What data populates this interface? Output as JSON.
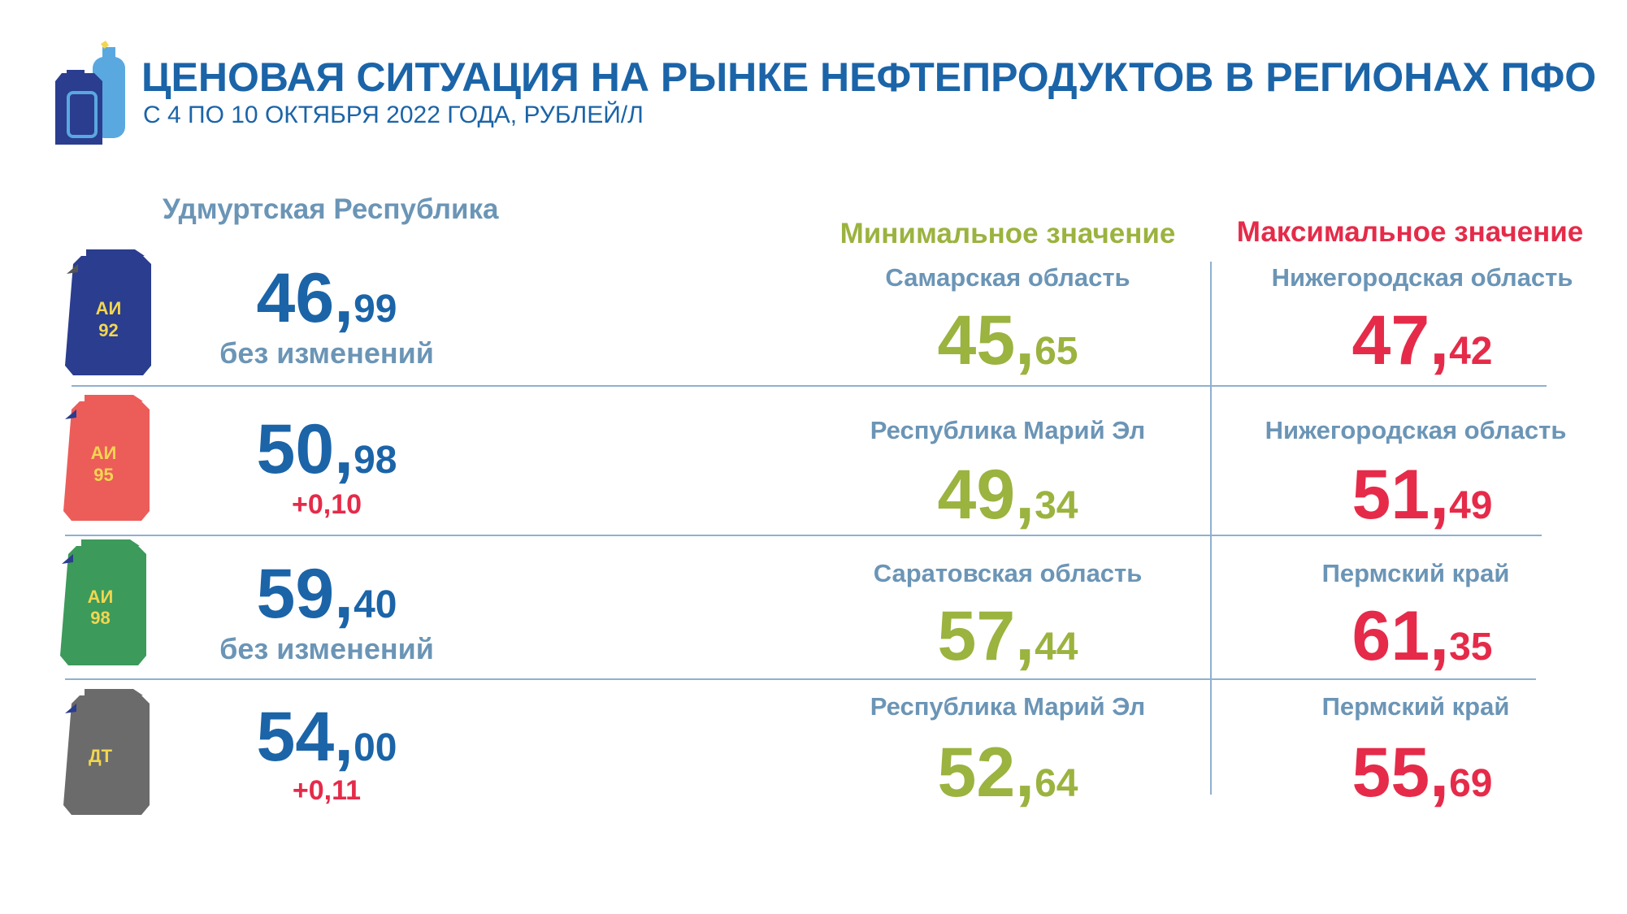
{
  "header": {
    "title": "ЦЕНОВАЯ СИТУАЦИЯ НА РЫНКЕ НЕФТЕПРОДУКТОВ В РЕГИОНАХ ПФО",
    "subtitle": "С 4 ПО 10 ОКТЯБРЯ 2022 ГОДА, РУБЛЕЙ/Л",
    "icon": "fuel-canister-gas-cylinder-icon"
  },
  "region_title": "Удмуртская Республика",
  "min_header": "Минимальное значение",
  "max_header": "Максимальное значение",
  "colors": {
    "primary_blue": "#1b64a8",
    "muted_blue": "#6b95b6",
    "min_green": "#9bb33f",
    "max_red": "#e52b49"
  },
  "rows": [
    {
      "fuel_line1": "АИ",
      "fuel_line2": "92",
      "can_color": "#2a3d8f",
      "price_int": "46,",
      "price_dec": "99",
      "change": "без изменений",
      "min_region": "Самарская  область",
      "min_int": "45,",
      "min_dec": "65",
      "max_region": "Нижегородская  область",
      "max_int": "47,",
      "max_dec": "42"
    },
    {
      "fuel_line1": "АИ",
      "fuel_line2": "95",
      "can_color": "#ec5d5a",
      "price_int": "50,",
      "price_dec": "98",
      "change": "+0,10",
      "min_region": "Республика  Марий  Эл",
      "min_int": "49,",
      "min_dec": "34",
      "max_region": "Нижегородская  область",
      "max_int": "51,",
      "max_dec": "49"
    },
    {
      "fuel_line1": "АИ",
      "fuel_line2": "98",
      "can_color": "#3c9a5a",
      "price_int": "59,",
      "price_dec": "40",
      "change": "без изменений",
      "min_region": "Саратовская  область",
      "min_int": "57,",
      "min_dec": "44",
      "max_region": "Пермский  край",
      "max_int": "61,",
      "max_dec": "35"
    },
    {
      "fuel_line1": "ДТ",
      "fuel_line2": "",
      "can_color": "#6b6b6b",
      "price_int": "54,",
      "price_dec": "00",
      "change": "+0,11",
      "min_region": "Республика  Марий  Эл",
      "min_int": "52,",
      "min_dec": "64",
      "max_region": "Пермский  край",
      "max_int": "55,",
      "max_dec": "69"
    }
  ]
}
